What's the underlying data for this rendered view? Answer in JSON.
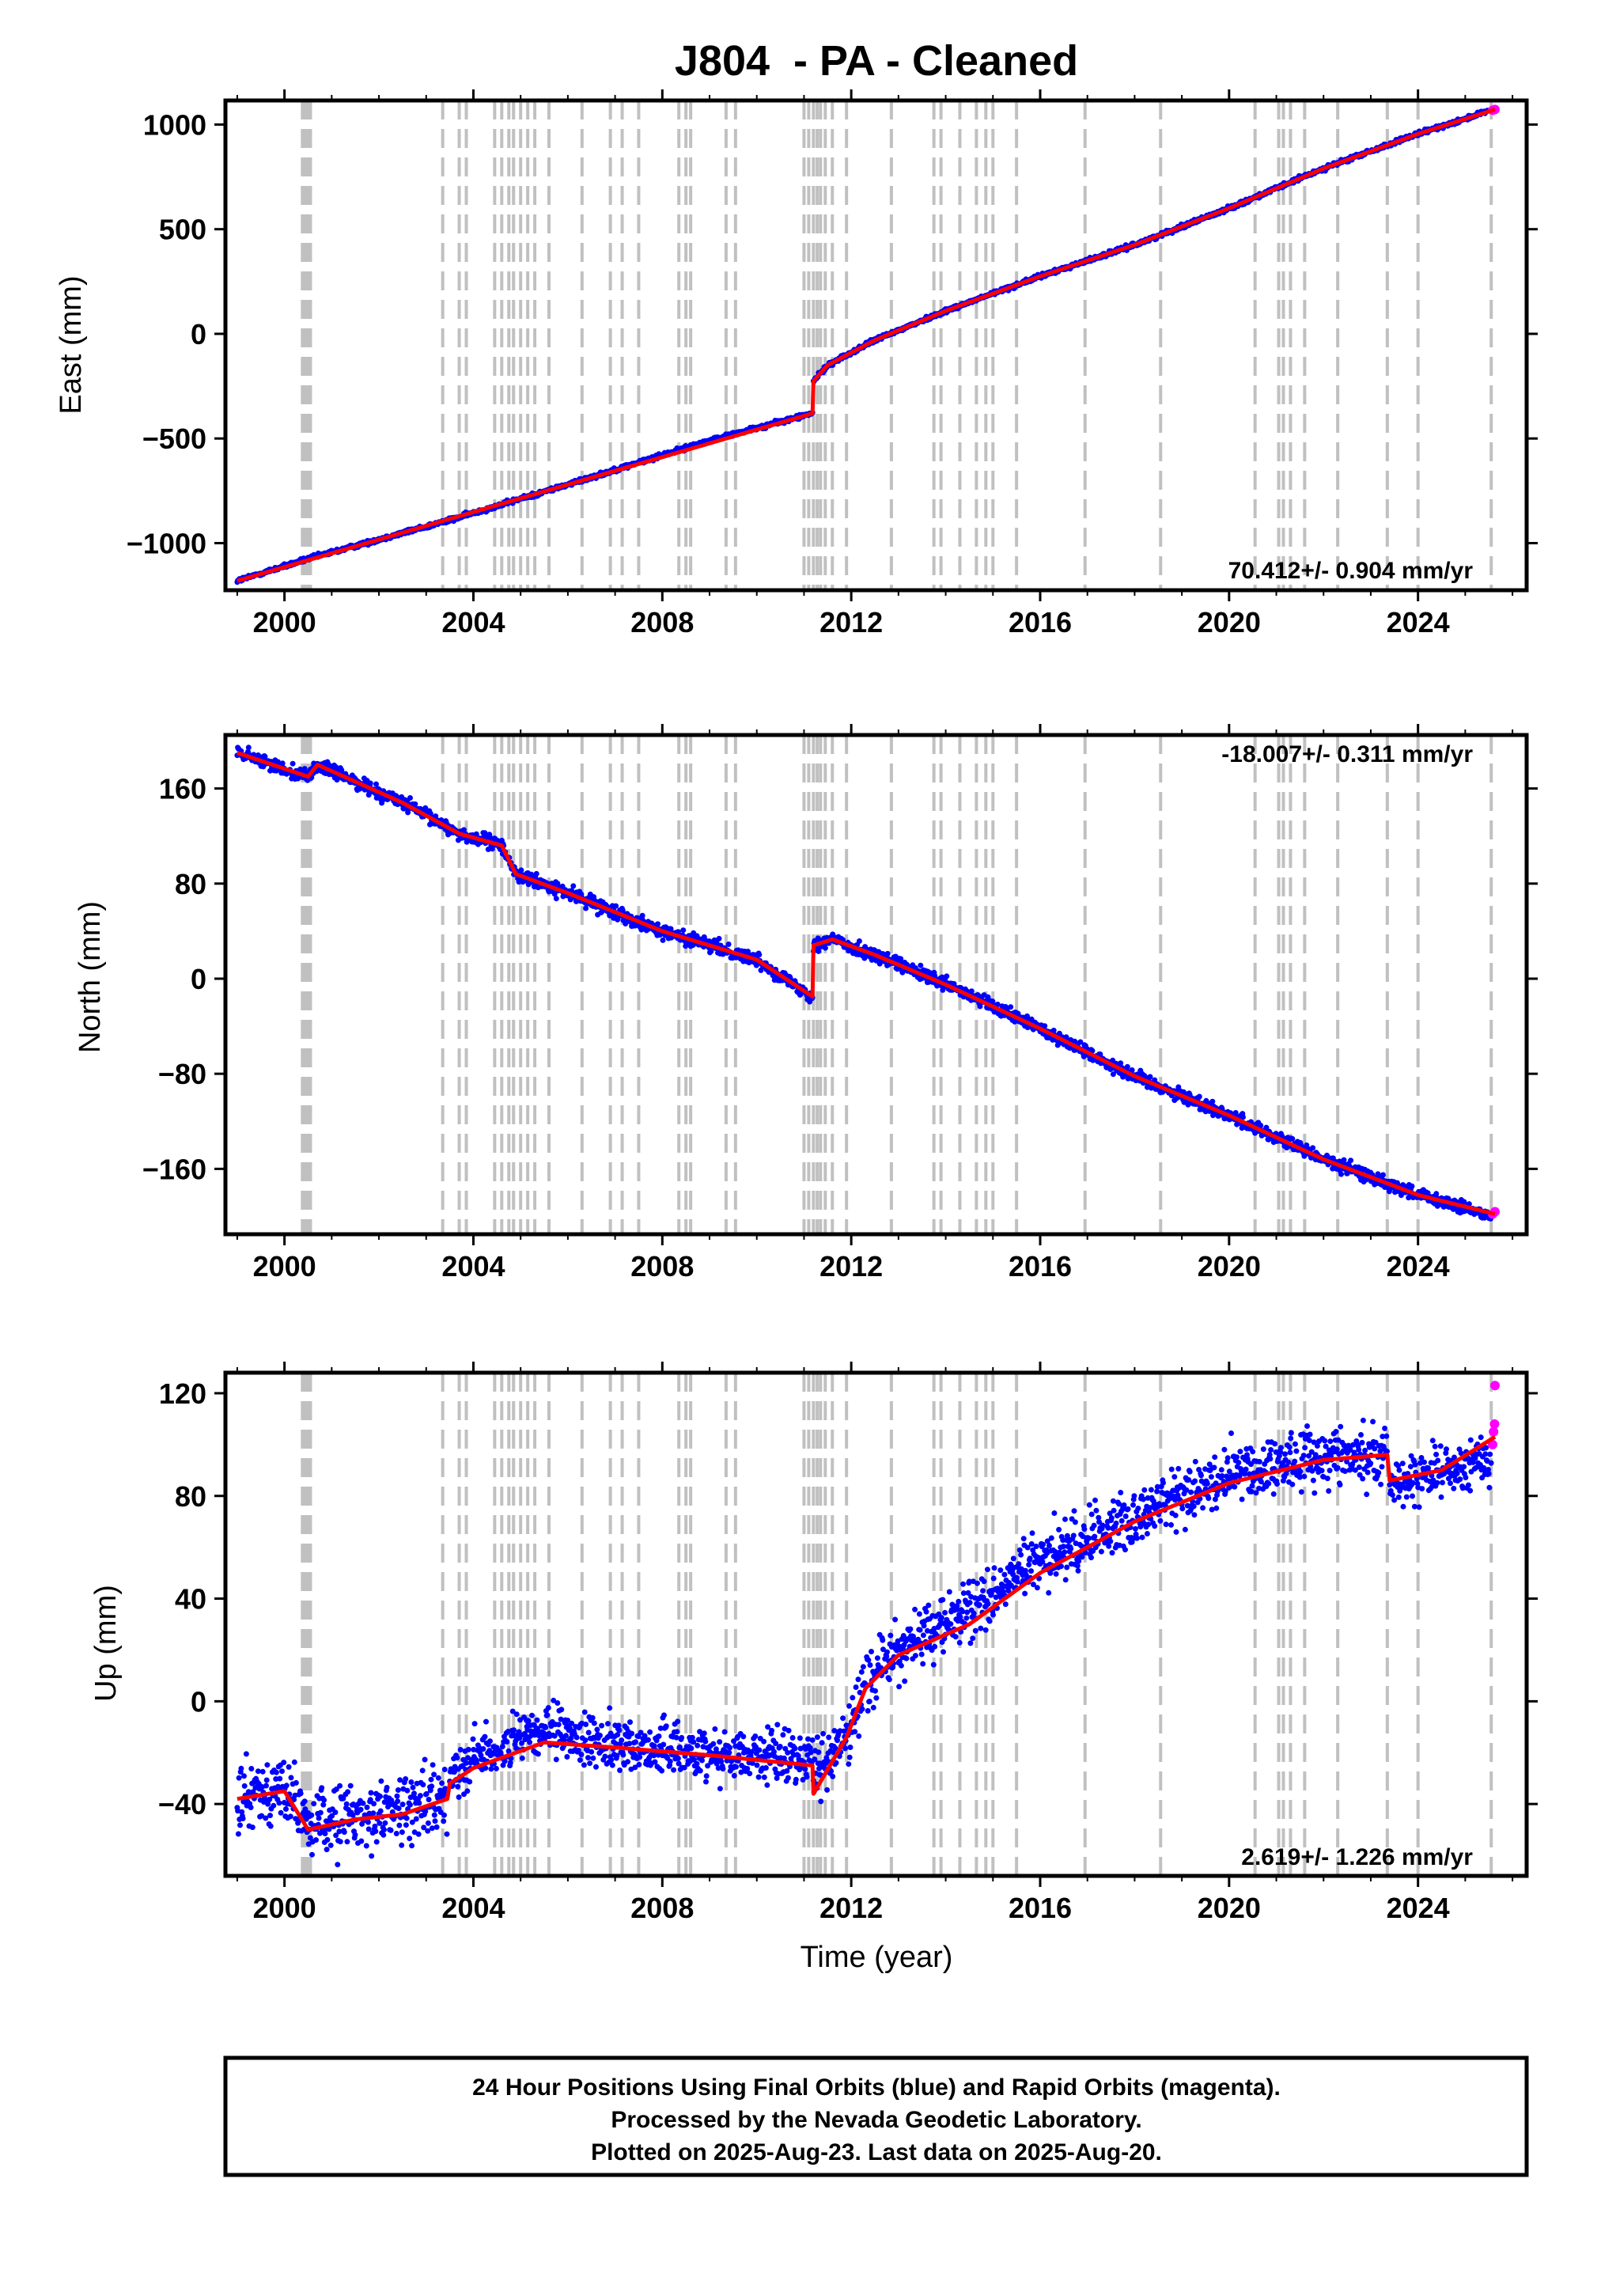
{
  "chart_data": [
    {
      "type": "scatter",
      "title": "J804  - PA - Cleaned",
      "ylabel": "East (mm)",
      "xlabel": "",
      "xlim": [
        1998.75,
        2026.3
      ],
      "ylim": [
        -1225,
        1115
      ],
      "xticks": [
        "2000",
        "2004",
        "2008",
        "2012",
        "2016",
        "2020",
        "2024"
      ],
      "yticks": [
        "1000",
        "500",
        "0",
        "−500",
        "−1000"
      ],
      "ytick_values": [
        1000,
        500,
        0,
        -500,
        -1000
      ],
      "rate_label": "70.412+/- 0.904 mm/yr",
      "series": [
        {
          "name": "Final Orbits",
          "color": "#0000ff",
          "x": [
            1999.0,
            2000.5,
            2003.5,
            2006.0,
            2009.0,
            2011.18
          ],
          "values": [
            -1180,
            -1075,
            -890,
            -720,
            -510,
            -380
          ],
          "spread": 7
        },
        {
          "name": "Final Orbits",
          "color": "#0000ff",
          "x": [
            2011.2,
            2011.5,
            2012.5,
            2014.0,
            2016.0,
            2018.0,
            2020.0,
            2022.0,
            2024.0,
            2025.5
          ],
          "values": [
            -225,
            -150,
            -30,
            110,
            275,
            425,
            600,
            790,
            955,
            1065
          ],
          "spread": 7
        },
        {
          "name": "Rapid Orbits",
          "color": "#ff00ff",
          "x": [
            2025.58,
            2025.63
          ],
          "values": [
            1068,
            1072
          ]
        }
      ],
      "model": {
        "color": "#ff0000",
        "x": [
          1999.0,
          2011.18,
          2011.2,
          2011.5,
          2012.5,
          2014.0,
          2016.0,
          2018.0,
          2020.0,
          2022.0,
          2024.0,
          2025.63
        ],
        "values": [
          -1180,
          -380,
          -225,
          -150,
          -30,
          110,
          275,
          425,
          600,
          790,
          955,
          1072
        ]
      }
    },
    {
      "type": "scatter",
      "title": "",
      "ylabel": "North (mm)",
      "xlabel": "",
      "xlim": [
        1998.75,
        2026.3
      ],
      "ylim": [
        -215,
        205
      ],
      "xticks": [
        "2000",
        "2004",
        "2008",
        "2012",
        "2016",
        "2020",
        "2024"
      ],
      "yticks": [
        "160",
        "80",
        "0",
        "−80",
        "−160"
      ],
      "ytick_values": [
        160,
        80,
        0,
        -80,
        -160
      ],
      "rate_label": "-18.007+/- 0.311 mm/yr",
      "series": [
        {
          "name": "Final Orbits",
          "color": "#0000ff",
          "x": [
            1999.0,
            2000.5,
            2000.7,
            2002.5,
            2003.7,
            2004.6,
            2004.9,
            2006.0,
            2008.0,
            2010.0,
            2011.18
          ],
          "values": [
            190,
            170,
            180,
            148,
            122,
            112,
            88,
            72,
            40,
            16,
            -15
          ],
          "spread": 4
        },
        {
          "name": "Final Orbits",
          "color": "#0000ff",
          "x": [
            2011.2,
            2011.6,
            2012.5,
            2014.0,
            2016.0,
            2018.0,
            2020.0,
            2022.0,
            2024.0,
            2025.55
          ],
          "values": [
            28,
            33,
            20,
            -5,
            -42,
            -82,
            -115,
            -152,
            -182,
            -200
          ],
          "spread": 4
        },
        {
          "name": "Rapid Orbits",
          "color": "#ff00ff",
          "x": [
            2025.58,
            2025.63
          ],
          "values": [
            -198,
            -196
          ]
        }
      ],
      "model": {
        "color": "#ff0000",
        "x": [
          1999.0,
          2000.5,
          2000.7,
          2002.5,
          2003.7,
          2004.6,
          2004.9,
          2006.0,
          2008.0,
          2010.0,
          2011.18,
          2011.2,
          2011.6,
          2012.5,
          2014.0,
          2016.0,
          2018.0,
          2020.0,
          2022.0,
          2024.0,
          2025.63
        ],
        "values": [
          190,
          170,
          180,
          148,
          122,
          112,
          88,
          72,
          40,
          16,
          -15,
          28,
          33,
          20,
          -5,
          -42,
          -82,
          -115,
          -152,
          -182,
          -198
        ]
      }
    },
    {
      "type": "scatter",
      "title": "",
      "ylabel": "Up (mm)",
      "xlabel": "Time (year)",
      "xlim": [
        1998.75,
        2026.3
      ],
      "ylim": [
        -68,
        128
      ],
      "xticks": [
        "2000",
        "2004",
        "2008",
        "2012",
        "2016",
        "2020",
        "2024"
      ],
      "yticks": [
        "120",
        "80",
        "40",
        "0",
        "−40"
      ],
      "ytick_values": [
        120,
        80,
        40,
        0,
        -40
      ],
      "rate_label": "2.619+/- 1.226 mm/yr",
      "series": [
        {
          "name": "Final Orbits",
          "color": "#0000ff",
          "x": [
            1999.0,
            2000.0,
            2000.5,
            2001.5,
            2002.5,
            2003.45
          ],
          "values": [
            -35,
            -34,
            -48,
            -45,
            -42,
            -38
          ],
          "spread": 9
        },
        {
          "name": "Final Orbits",
          "color": "#0000ff",
          "x": [
            2003.5,
            2004.0,
            2005.5,
            2007.0,
            2009.0,
            2011.18
          ],
          "values": [
            -28,
            -22,
            -12,
            -17,
            -20,
            -22
          ],
          "spread": 7
        },
        {
          "name": "Final Orbits",
          "color": "#0000ff",
          "x": [
            2011.2,
            2011.9,
            2012.3,
            2013.0,
            2014.5,
            2016.0,
            2018.0,
            2020.0,
            2022.0,
            2023.35
          ],
          "values": [
            -28,
            -15,
            8,
            20,
            35,
            55,
            72,
            88,
            96,
            96
          ],
          "spread": 8
        },
        {
          "name": "Final Orbits",
          "color": "#0000ff",
          "x": [
            2023.4,
            2024.5,
            2025.55
          ],
          "values": [
            85,
            90,
            95
          ],
          "spread": 7
        },
        {
          "name": "Rapid Orbits",
          "color": "#ff00ff",
          "x": [
            2025.58,
            2025.6,
            2025.62,
            2025.63
          ],
          "values": [
            100,
            105,
            108,
            123
          ]
        }
      ],
      "model": {
        "color": "#ff0000",
        "x": [
          1999.0,
          2000.0,
          2000.5,
          2001.5,
          2002.5,
          2003.45,
          2003.5,
          2004.0,
          2005.5,
          2007.0,
          2009.0,
          2011.18,
          2011.2,
          2011.9,
          2012.3,
          2013.0,
          2014.5,
          2016.0,
          2018.0,
          2020.0,
          2022.0,
          2023.35,
          2023.4,
          2024.5,
          2025.63
        ],
        "values": [
          -38,
          -35,
          -50,
          -46,
          -44,
          -38,
          -32,
          -26,
          -16,
          -18,
          -21,
          -25,
          -36,
          -14,
          5,
          18,
          30,
          50,
          70,
          85,
          94,
          96,
          86,
          90,
          103
        ]
      }
    }
  ],
  "equipment_change_years": [
    2000.38,
    2000.42,
    2000.46,
    2000.5,
    2000.55,
    2003.35,
    2003.7,
    2003.85,
    2004.45,
    2004.6,
    2004.75,
    2004.85,
    2005.0,
    2005.15,
    2005.3,
    2005.6,
    2006.3,
    2006.9,
    2007.15,
    2007.5,
    2008.35,
    2008.5,
    2008.6,
    2009.35,
    2009.55,
    2011.0,
    2011.1,
    2011.2,
    2011.28,
    2011.35,
    2011.45,
    2011.6,
    2011.9,
    2012.85,
    2013.75,
    2013.9,
    2014.3,
    2014.65,
    2014.85,
    2015.0,
    2015.5,
    2016.95,
    2018.55,
    2020.55,
    2021.05,
    2021.15,
    2021.3,
    2021.6,
    2022.3,
    2023.35,
    2024.0,
    2025.55
  ],
  "footer": {
    "line1": "24 Hour Positions Using Final Orbits (blue) and Rapid Orbits (magenta).",
    "line2": "Processed by the Nevada Geodetic Laboratory.",
    "line3": "Plotted on 2025-Aug-23. Last data on 2025-Aug-20."
  }
}
